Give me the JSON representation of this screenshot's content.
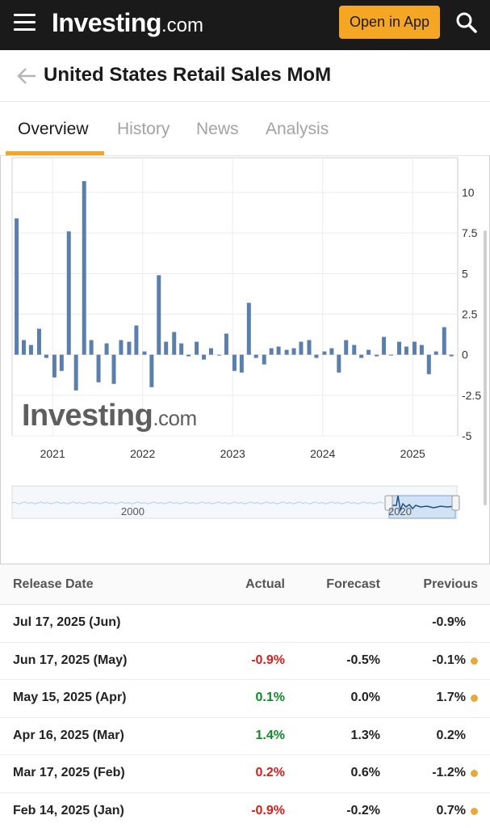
{
  "header": {
    "logo_main": "Investing",
    "logo_suffix": ".com",
    "open_app_label": "Open in App"
  },
  "page": {
    "title": "United States Retail Sales MoM"
  },
  "tabs": [
    {
      "label": "Overview",
      "active": true
    },
    {
      "label": "History",
      "active": false
    },
    {
      "label": "News",
      "active": false
    },
    {
      "label": "Analysis",
      "active": false
    }
  ],
  "chart": {
    "watermark_main": "Investing",
    "watermark_suffix": ".com",
    "navigator_labels": [
      "2000",
      "2020"
    ]
  },
  "chart_data": {
    "type": "bar",
    "title": "",
    "xlabel": "",
    "ylabel": "",
    "ylim": [
      -5,
      12
    ],
    "y_ticks": [
      10,
      7.5,
      5,
      2.5,
      0,
      -2.5,
      -5
    ],
    "y_tick_labels": [
      "10",
      "7.5",
      "5",
      "2.5",
      "0",
      "-2.5",
      "-5"
    ],
    "x_tick_labels": [
      "2021",
      "2022",
      "2023",
      "2024",
      "2025"
    ],
    "x_tick_values": [
      2021.0,
      2022.0,
      2023.0,
      2024.0,
      2025.0
    ],
    "x_range": [
      2020.55,
      2025.5
    ],
    "grid": true,
    "bar_color": "#5a7fad",
    "series": [
      {
        "x": [
          2020.6,
          2020.68,
          2020.76,
          2020.85,
          2020.93,
          2021.02,
          2021.1,
          2021.18,
          2021.26,
          2021.35,
          2021.43,
          2021.51,
          2021.6,
          2021.68,
          2021.76,
          2021.85,
          2021.93,
          2022.02,
          2022.1,
          2022.18,
          2022.26,
          2022.35,
          2022.43,
          2022.51,
          2022.6,
          2022.68,
          2022.76,
          2022.85,
          2022.93,
          2023.02,
          2023.1,
          2023.18,
          2023.26,
          2023.35,
          2023.43,
          2023.51,
          2023.6,
          2023.68,
          2023.76,
          2023.85,
          2023.93,
          2024.02,
          2024.1,
          2024.18,
          2024.26,
          2024.35,
          2024.43,
          2024.51,
          2024.6,
          2024.68,
          2024.76,
          2024.85,
          2024.93,
          2025.02,
          2025.1,
          2025.18,
          2025.26,
          2025.35,
          2025.43
        ],
        "values": [
          8.4,
          0.9,
          0.6,
          1.6,
          -0.2,
          -1.4,
          -1.0,
          7.6,
          -2.2,
          10.7,
          0.9,
          -1.7,
          0.7,
          -1.8,
          0.9,
          0.8,
          1.8,
          0.2,
          -2.0,
          4.9,
          0.8,
          1.4,
          0.7,
          -0.1,
          0.8,
          -0.3,
          0.4,
          0.0,
          1.3,
          -1.0,
          -1.1,
          3.2,
          -0.2,
          -0.6,
          0.4,
          0.5,
          0.3,
          0.4,
          0.8,
          0.9,
          -0.2,
          0.2,
          0.4,
          -1.1,
          0.9,
          0.6,
          -0.2,
          0.3,
          -0.1,
          1.1,
          0.0,
          0.8,
          0.5,
          0.8,
          0.6,
          -1.2,
          0.2,
          1.7,
          -0.1
        ]
      }
    ]
  },
  "table": {
    "headers": {
      "date": "Release Date",
      "actual": "Actual",
      "forecast": "Forecast",
      "previous": "Previous"
    },
    "rows": [
      {
        "date": "Jul 17, 2025 (Jun)",
        "actual": "",
        "forecast": "",
        "previous": "-0.9%",
        "actual_color": "",
        "revised": false
      },
      {
        "date": "Jun 17, 2025 (May)",
        "actual": "-0.9%",
        "forecast": "-0.5%",
        "previous": "-0.1%",
        "actual_color": "red",
        "revised": true
      },
      {
        "date": "May 15, 2025 (Apr)",
        "actual": "0.1%",
        "forecast": "0.0%",
        "previous": "1.7%",
        "actual_color": "green",
        "revised": true
      },
      {
        "date": "Apr 16, 2025 (Mar)",
        "actual": "1.4%",
        "forecast": "1.3%",
        "previous": "0.2%",
        "actual_color": "green",
        "revised": false
      },
      {
        "date": "Mar 17, 2025 (Feb)",
        "actual": "0.2%",
        "forecast": "0.6%",
        "previous": "-1.2%",
        "actual_color": "red",
        "revised": true
      },
      {
        "date": "Feb 14, 2025 (Jan)",
        "actual": "-0.9%",
        "forecast": "-0.2%",
        "previous": "0.7%",
        "actual_color": "red",
        "revised": true
      }
    ]
  },
  "colors": {
    "accent": "#f5a623",
    "header_bg": "#1a1a1a",
    "negative": "#d91e18",
    "positive": "#0e8a27",
    "revised_dot": "#e8a93a"
  }
}
